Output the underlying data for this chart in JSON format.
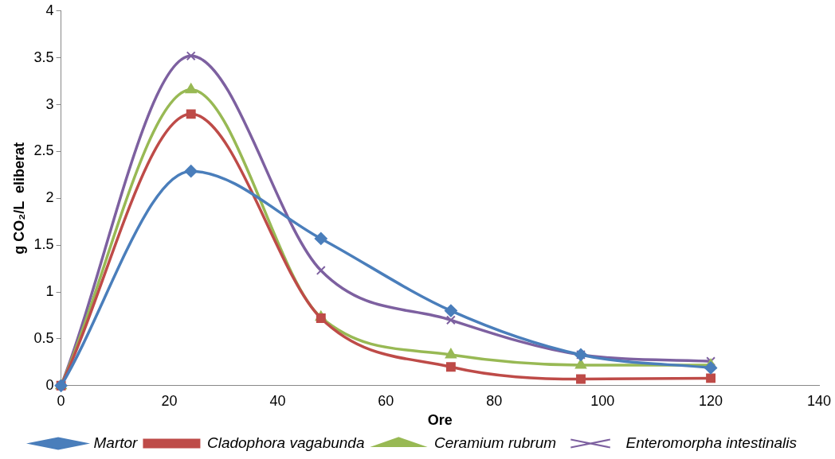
{
  "chart_data": {
    "type": "line",
    "xlabel": "Ore",
    "ylabel": "g CO₂/L  eliberat",
    "x": [
      0,
      24,
      48,
      72,
      96,
      120
    ],
    "xlim": [
      0,
      140
    ],
    "xticks": [
      0,
      20,
      40,
      60,
      80,
      100,
      120,
      140
    ],
    "ylim": [
      0,
      4
    ],
    "yticks": [
      0,
      0.5,
      1,
      1.5,
      2,
      2.5,
      3,
      3.5,
      4
    ],
    "grid": false,
    "legend": "bottom",
    "series": [
      {
        "name": "Martor",
        "color": "#4a7ebb",
        "marker": "diamond",
        "values": [
          0,
          2.29,
          1.57,
          0.8,
          0.33,
          0.19
        ]
      },
      {
        "name": "Cladophora vagabunda",
        "color": "#be4b48",
        "marker": "square",
        "values": [
          0,
          2.9,
          0.72,
          0.2,
          0.07,
          0.08
        ]
      },
      {
        "name": "Ceramium rubrum",
        "color": "#98b954",
        "marker": "triangle",
        "values": [
          0,
          3.16,
          0.73,
          0.33,
          0.22,
          0.22
        ]
      },
      {
        "name": "Enteromorpha intestinalis",
        "color": "#7d60a0",
        "marker": "cross",
        "values": [
          0,
          3.52,
          1.23,
          0.7,
          0.33,
          0.26
        ]
      }
    ]
  }
}
